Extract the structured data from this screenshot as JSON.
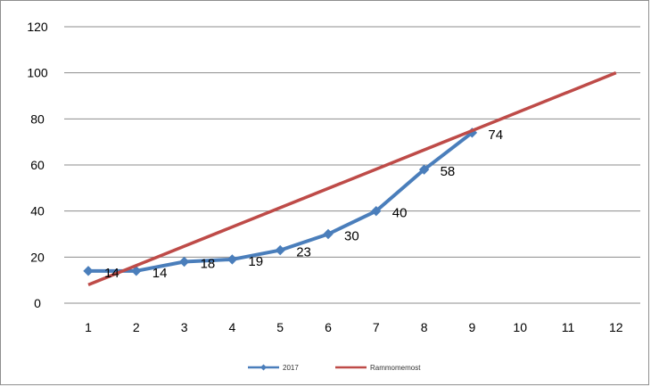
{
  "chart_data": {
    "type": "line",
    "title": "",
    "xlabel": "",
    "ylabel": "",
    "x": [
      1,
      2,
      3,
      4,
      5,
      6,
      7,
      8,
      9,
      10,
      11,
      12
    ],
    "x_tick_labels": [
      "1",
      "2",
      "3",
      "4",
      "5",
      "6",
      "7",
      "8",
      "9",
      "10",
      "11",
      "12"
    ],
    "ylim": [
      0,
      120
    ],
    "y_tick_labels": [
      "0",
      "20",
      "40",
      "60",
      "80",
      "100",
      "120"
    ],
    "grid": "horizontal",
    "legend_position": "bottom",
    "series": [
      {
        "name": "2017",
        "color": "#4a7ebb",
        "marker": "diamond",
        "x": [
          1,
          2,
          3,
          4,
          5,
          6,
          7,
          8,
          9
        ],
        "values": [
          14,
          14,
          18,
          19,
          23,
          30,
          40,
          58,
          74
        ],
        "data_labels": [
          "14",
          "14",
          "18",
          "19",
          "23",
          "30",
          "40",
          "58",
          "74"
        ]
      },
      {
        "name": "Rammomemost",
        "color": "#be4b48",
        "marker": "none",
        "x": [
          1,
          12
        ],
        "values": [
          8,
          100
        ]
      }
    ]
  }
}
